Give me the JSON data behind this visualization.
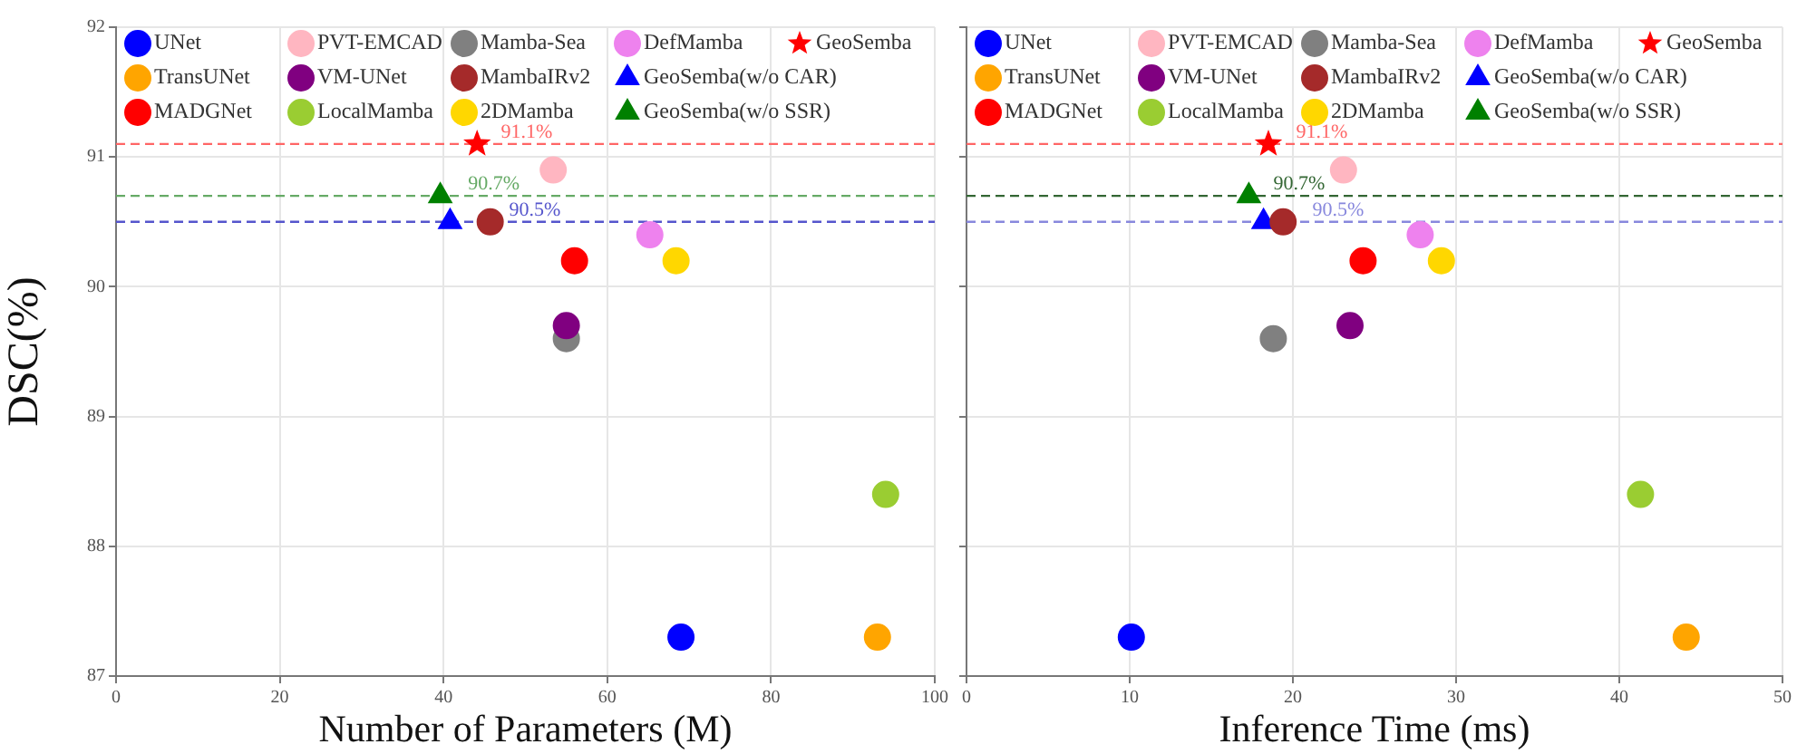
{
  "chart_data": [
    {
      "type": "scatter",
      "xlabel": "Number of Parameters (M)",
      "ylabel": "DSC(%)",
      "xlim": [
        0,
        100
      ],
      "xticks": [
        0,
        20,
        40,
        60,
        80,
        100
      ],
      "ylim": [
        87,
        92
      ],
      "yticks": [
        87,
        88,
        89,
        90,
        91,
        92
      ],
      "grid": true,
      "legend": "top",
      "series": [
        {
          "name": "UNet",
          "color": "#0000ff",
          "marker": "circle",
          "x": [
            69
          ],
          "values": [
            87.3
          ]
        },
        {
          "name": "TransUNet",
          "color": "#ffa500",
          "marker": "circle",
          "x": [
            93
          ],
          "values": [
            87.3
          ]
        },
        {
          "name": "MADGNet",
          "color": "#ff0000",
          "marker": "circle",
          "x": [
            56
          ],
          "values": [
            90.2
          ]
        },
        {
          "name": "PVT-EMCAD",
          "color": "#ffb6c1",
          "marker": "circle",
          "x": [
            53.4
          ],
          "values": [
            90.9
          ]
        },
        {
          "name": "VM-UNet",
          "color": "#800080",
          "marker": "circle",
          "x": [
            55
          ],
          "values": [
            89.7
          ]
        },
        {
          "name": "LocalMamba",
          "color": "#9acd32",
          "marker": "circle",
          "x": [
            94
          ],
          "values": [
            88.4
          ]
        },
        {
          "name": "Mamba-Sea",
          "color": "#808080",
          "marker": "circle",
          "x": [
            55
          ],
          "values": [
            89.6
          ]
        },
        {
          "name": "MambaIRv2",
          "color": "#a52a2a",
          "marker": "circle",
          "x": [
            45.7
          ],
          "values": [
            90.5
          ]
        },
        {
          "name": "2DMamba",
          "color": "#ffd700",
          "marker": "circle",
          "x": [
            68.4
          ],
          "values": [
            90.2
          ]
        },
        {
          "name": "DefMamba",
          "color": "#ee82ee",
          "marker": "circle",
          "x": [
            65.2
          ],
          "values": [
            90.4
          ]
        },
        {
          "name": "GeoSemba(w/o CAR)",
          "color": "#0000ff",
          "marker": "triangle",
          "x": [
            40.8
          ],
          "values": [
            90.5
          ]
        },
        {
          "name": "GeoSemba(w/o SSR)",
          "color": "#008000",
          "marker": "triangle",
          "x": [
            39.6
          ],
          "values": [
            90.7
          ]
        },
        {
          "name": "GeoSemba",
          "color": "#ff0000",
          "marker": "star",
          "x": [
            44.1
          ],
          "values": [
            91.1
          ]
        }
      ],
      "ref_lines": [
        {
          "axis": "y",
          "value": 91.1,
          "color": "#ff6666",
          "line_style": "dashed"
        },
        {
          "axis": "y",
          "value": 90.7,
          "color": "#66aa66",
          "line_style": "dashed"
        },
        {
          "axis": "y",
          "value": 90.5,
          "color": "#5555cc",
          "line_style": "dashed"
        }
      ],
      "annotations": [
        {
          "text": "91.1%",
          "x": 47,
          "y": 91.1
        },
        {
          "text": "90.7%",
          "x": 43,
          "y": 90.7
        },
        {
          "text": "90.5%",
          "x": 48,
          "y": 90.5
        }
      ]
    },
    {
      "type": "scatter",
      "xlabel": "Inference Time (ms)",
      "xlim": [
        0,
        50
      ],
      "xticks": [
        0,
        10,
        20,
        30,
        40,
        50
      ],
      "ylim": [
        87,
        92
      ],
      "yticks": [
        87,
        88,
        89,
        90,
        91,
        92
      ],
      "grid": true,
      "legend": "top",
      "tick_labels": "x",
      "series": [
        {
          "name": "UNet",
          "color": "#0000ff",
          "marker": "circle",
          "x": [
            10.1
          ],
          "values": [
            87.3
          ]
        },
        {
          "name": "TransUNet",
          "color": "#ffa500",
          "marker": "circle",
          "x": [
            44.1
          ],
          "values": [
            87.3
          ]
        },
        {
          "name": "MADGNet",
          "color": "#ff0000",
          "marker": "circle",
          "x": [
            24.3
          ],
          "values": [
            90.2
          ]
        },
        {
          "name": "PVT-EMCAD",
          "color": "#ffb6c1",
          "marker": "circle",
          "x": [
            23.1
          ],
          "values": [
            90.9
          ]
        },
        {
          "name": "VM-UNet",
          "color": "#800080",
          "marker": "circle",
          "x": [
            23.5
          ],
          "values": [
            89.7
          ]
        },
        {
          "name": "LocalMamba",
          "color": "#9acd32",
          "marker": "circle",
          "x": [
            41.3
          ],
          "values": [
            88.4
          ]
        },
        {
          "name": "Mamba-Sea",
          "color": "#808080",
          "marker": "circle",
          "x": [
            18.8
          ],
          "values": [
            89.6
          ]
        },
        {
          "name": "MambaIRv2",
          "color": "#a52a2a",
          "marker": "circle",
          "x": [
            19.4
          ],
          "values": [
            90.5
          ]
        },
        {
          "name": "2DMamba",
          "color": "#ffd700",
          "marker": "circle",
          "x": [
            29.1
          ],
          "values": [
            90.2
          ]
        },
        {
          "name": "DefMamba",
          "color": "#ee82ee",
          "marker": "circle",
          "x": [
            27.8
          ],
          "values": [
            90.4
          ]
        },
        {
          "name": "GeoSemba(w/o CAR)",
          "color": "#0000ff",
          "marker": "triangle",
          "x": [
            18.2
          ],
          "values": [
            90.5
          ]
        },
        {
          "name": "GeoSemba(w/o SSR)",
          "color": "#008000",
          "marker": "triangle",
          "x": [
            17.3
          ],
          "values": [
            90.7
          ]
        },
        {
          "name": "GeoSemba",
          "color": "#ff0000",
          "marker": "star",
          "x": [
            18.5
          ],
          "values": [
            91.1
          ]
        }
      ],
      "ref_lines": [
        {
          "axis": "y",
          "value": 91.1,
          "color": "#ff6666",
          "line_style": "dashed"
        },
        {
          "axis": "y",
          "value": 90.7,
          "color": "#336633",
          "line_style": "dashed"
        },
        {
          "axis": "y",
          "value": 90.5,
          "color": "#8888dd",
          "line_style": "dashed"
        }
      ],
      "annotations": [
        {
          "text": "91.1%",
          "x": 20.2,
          "y": 91.1
        },
        {
          "text": "90.7%",
          "x": 18.8,
          "y": 90.7
        },
        {
          "text": "90.5%",
          "x": 21.2,
          "y": 90.5
        }
      ]
    }
  ]
}
